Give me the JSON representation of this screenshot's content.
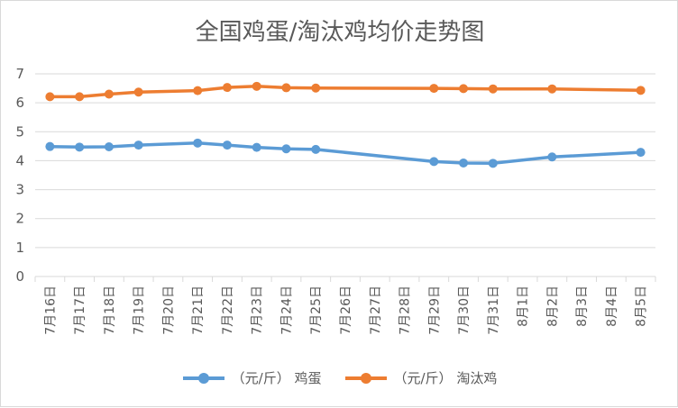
{
  "chart_data": {
    "type": "line",
    "title": "全国鸡蛋/淘汰鸡均价走势图",
    "xlabel": "",
    "ylabel": "",
    "ylim": [
      0,
      7
    ],
    "yticks": [
      0,
      1,
      2,
      3,
      4,
      5,
      6,
      7
    ],
    "grid": true,
    "legend_position": "bottom",
    "categories": [
      "7月16日",
      "7月17日",
      "7月18日",
      "7月19日",
      "7月20日",
      "7月21日",
      "7月22日",
      "7月23日",
      "7月24日",
      "7月25日",
      "7月26日",
      "7月27日",
      "7月28日",
      "7月29日",
      "7月30日",
      "7月31日",
      "8月1日",
      "8月2日",
      "8月3日",
      "8月4日",
      "8月5日"
    ],
    "series": [
      {
        "name": "（元/斤） 鸡蛋",
        "color": "#5b9bd5",
        "values": [
          4.49,
          4.47,
          4.48,
          4.54,
          null,
          4.61,
          4.54,
          4.46,
          4.41,
          4.39,
          null,
          null,
          null,
          3.97,
          3.92,
          3.91,
          null,
          4.13,
          null,
          null,
          4.29
        ]
      },
      {
        "name": "（元/斤） 淘汰鸡",
        "color": "#ed7d31",
        "values": [
          6.21,
          6.21,
          6.3,
          6.37,
          null,
          6.42,
          6.53,
          6.57,
          6.52,
          6.51,
          null,
          null,
          null,
          6.5,
          6.49,
          6.48,
          null,
          6.48,
          null,
          null,
          6.43
        ]
      }
    ]
  }
}
